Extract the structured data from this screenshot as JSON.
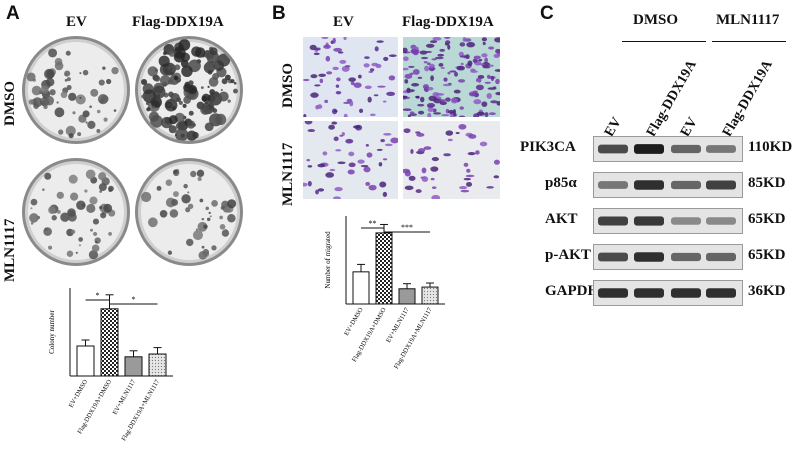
{
  "panels": {
    "A": {
      "letter": "A",
      "columns": [
        "EV",
        "Flag-DDX19A"
      ],
      "rows": [
        "DMSO",
        "MLN1117"
      ]
    },
    "B": {
      "letter": "B",
      "columns": [
        "EV",
        "Flag-DDX19A"
      ],
      "rows": [
        "DMSO",
        "MLN1117"
      ]
    },
    "C": {
      "letter": "C",
      "groups": [
        "DMSO",
        "MLN1117"
      ],
      "lanes": [
        "EV",
        "Flag-DDX19A",
        "EV",
        "Flag-DDX19A"
      ],
      "proteins": [
        {
          "name": "PIK3CA",
          "size": "110KD",
          "intensity": [
            0.7,
            0.95,
            0.55,
            0.45
          ]
        },
        {
          "name": "p85α",
          "size": "85KD",
          "intensity": [
            0.45,
            0.85,
            0.55,
            0.75
          ]
        },
        {
          "name": "AKT",
          "size": "65KD",
          "intensity": [
            0.75,
            0.8,
            0.35,
            0.35
          ]
        },
        {
          "name": "p-AKT",
          "size": "65KD",
          "intensity": [
            0.7,
            0.85,
            0.55,
            0.55
          ]
        },
        {
          "name": "GAPDH",
          "size": "36KD",
          "intensity": [
            0.85,
            0.85,
            0.85,
            0.85
          ]
        }
      ]
    }
  },
  "chart_data": [
    {
      "type": "bar",
      "title": "",
      "xlabel": "",
      "ylabel": "Colony number",
      "categories": [
        "EV+DMSO",
        "Flag-DDX19A+DMSO",
        "EV+MLN1117",
        "Flag-DDX19A+MLN1117"
      ],
      "values": [
        75,
        168,
        48,
        55
      ],
      "errors": [
        15,
        35,
        15,
        16
      ],
      "ylim": [
        0,
        220
      ],
      "significance": [
        "*",
        "*"
      ]
    },
    {
      "type": "bar",
      "title": "",
      "xlabel": "",
      "ylabel": "Number of migrated",
      "categories": [
        "EV+DMSO",
        "Flag-DDX19A+DMSO",
        "EV+MLN1117",
        "Flag-DDX19A+MLN1117"
      ],
      "values": [
        95,
        210,
        45,
        50
      ],
      "errors": [
        22,
        25,
        15,
        12
      ],
      "ylim": [
        0,
        260
      ],
      "significance": [
        "**",
        "***"
      ]
    }
  ]
}
